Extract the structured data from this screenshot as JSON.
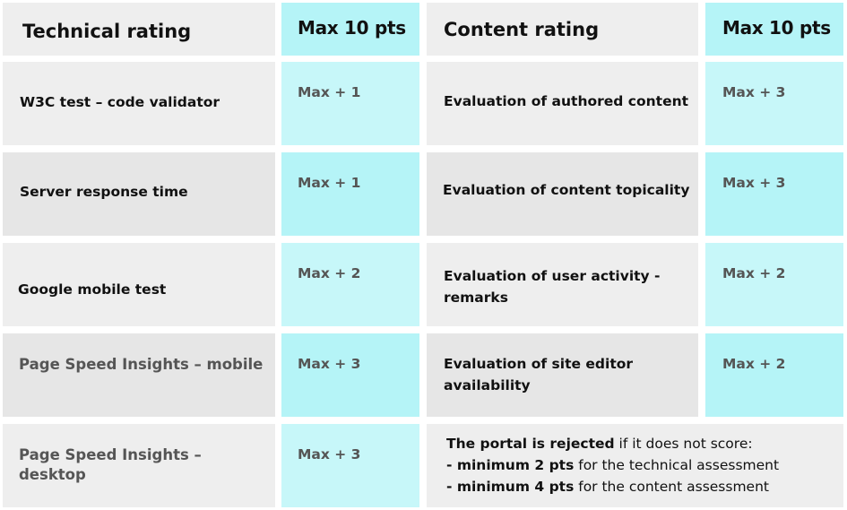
{
  "header": {
    "technical": "Technical rating",
    "technical_max": "Max 10 pts",
    "content": "Content rating",
    "content_max": "Max 10 pts"
  },
  "rows": [
    {
      "technical": "W3C test – code validator",
      "technical_pts": "Max + 1",
      "content": "Evaluation of authored content",
      "content_pts": "Max + 3"
    },
    {
      "technical": "Server response time",
      "technical_pts": "Max + 1",
      "content": "Evaluation of content topicality",
      "content_pts": "Max + 3"
    },
    {
      "technical": "Google mobile test",
      "technical_pts": "Max + 2",
      "content": "Evaluation of user activity - remarks",
      "content_pts": "Max + 2"
    },
    {
      "technical": "Page Speed Insights – mobile",
      "technical_pts": "Max + 3",
      "content": "Evaluation of site editor availability",
      "content_pts": "Max + 2"
    },
    {
      "technical": "Page Speed Insights – desktop",
      "technical_pts": "Max + 3"
    }
  ],
  "rejection": {
    "lead_bold": "The portal is rejected",
    "lead_rest": " if it does not score:",
    "line1_dash": "- ",
    "line1_bold": "minimum 2 pts",
    "line1_rest": " for the technical assessment",
    "line2_dash": "- ",
    "line2_bold": "minimum 4 pts",
    "line2_rest": " for the content assessment"
  }
}
